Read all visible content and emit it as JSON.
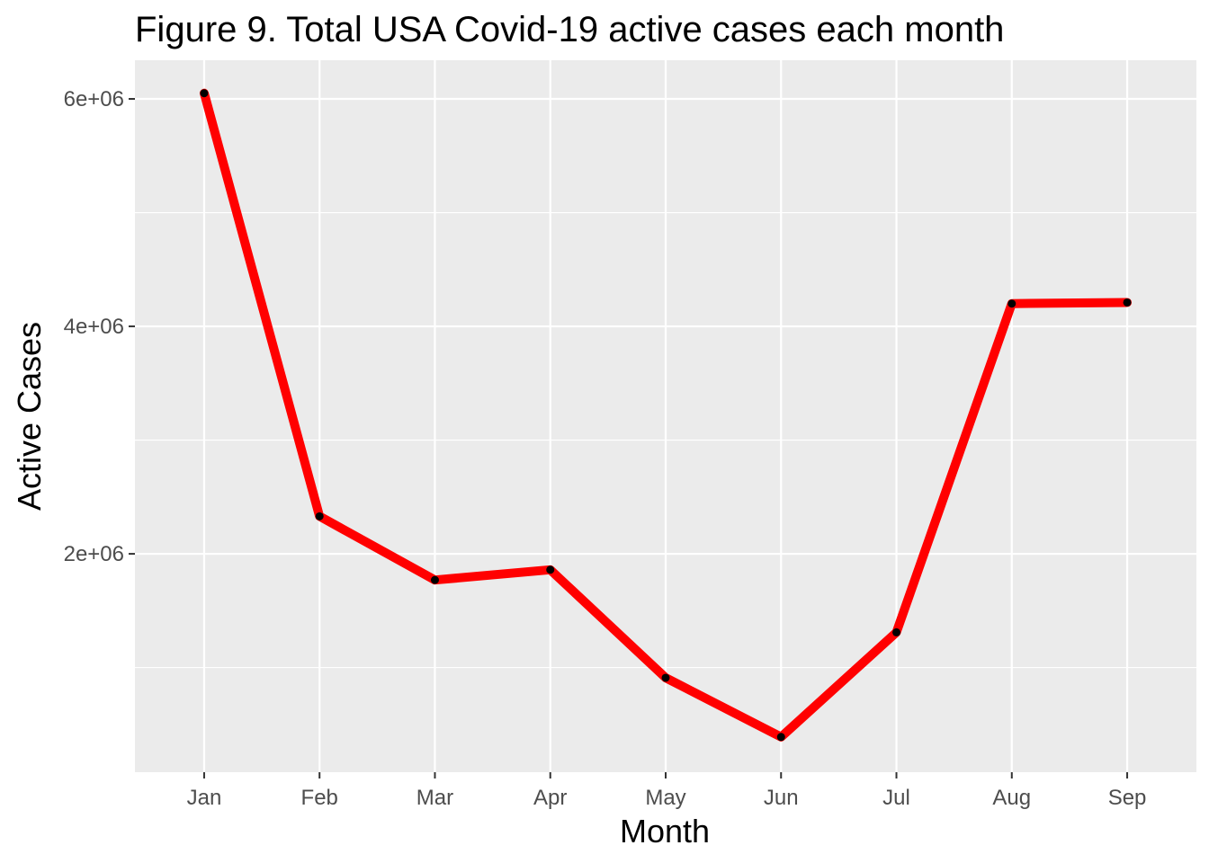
{
  "chart_data": {
    "type": "line",
    "title": "Figure 9. Total USA Covid-19 active cases each month",
    "xlabel": "Month",
    "ylabel": "Active Cases",
    "categories": [
      "Jan",
      "Feb",
      "Mar",
      "Apr",
      "May",
      "Jun",
      "Jul",
      "Aug",
      "Sep"
    ],
    "values": [
      6050000,
      2330000,
      1770000,
      1860000,
      910000,
      390000,
      1310000,
      4200000,
      4210000
    ],
    "ylim": [
      80000,
      6340000
    ],
    "yticks": [
      2000000,
      4000000,
      6000000
    ],
    "ytick_labels": [
      "2e+06",
      "4e+06",
      "6e+06"
    ],
    "grid": true,
    "line_color": "#ff0000",
    "point_color": "#000000",
    "panel_color": "#ebebeb"
  }
}
